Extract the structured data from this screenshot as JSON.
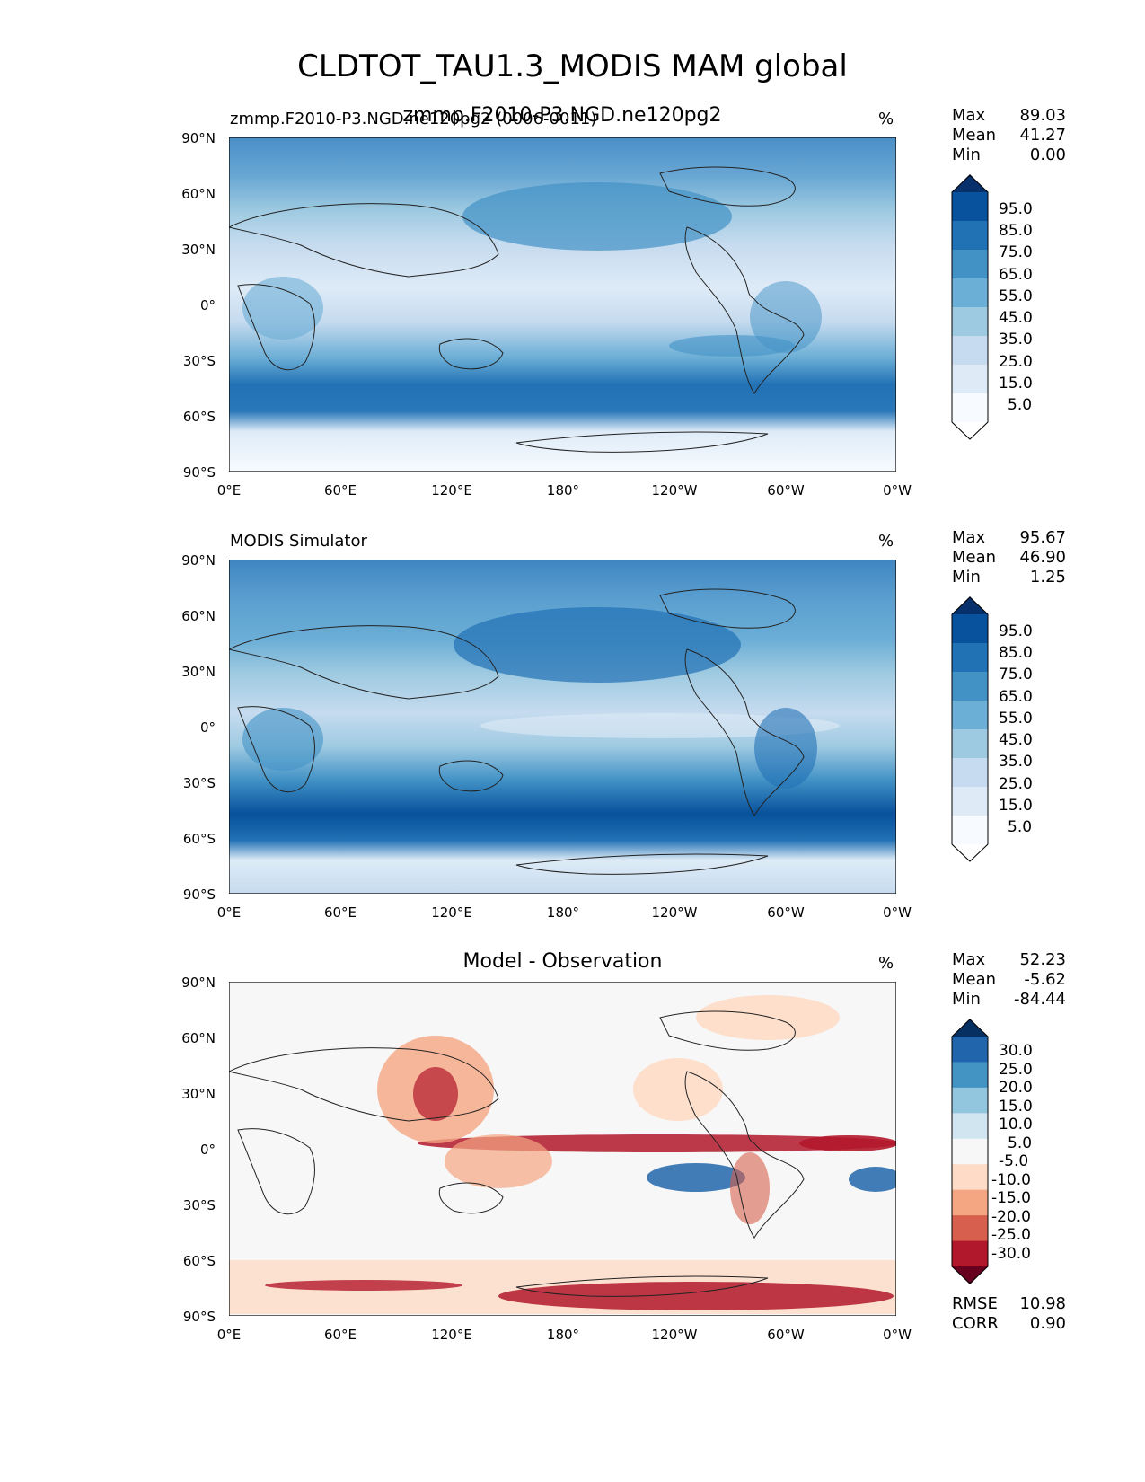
{
  "title": "CLDTOT_TAU1.3_MODIS MAM global",
  "lat_ticks": [
    "90°N",
    "60°N",
    "30°N",
    "0°",
    "30°S",
    "60°S",
    "90°S"
  ],
  "lon_ticks": [
    "0°E",
    "60°E",
    "120°E",
    "180°",
    "120°W",
    "60°W",
    "0°W"
  ],
  "panels": [
    {
      "id": "model",
      "left_title": "zmmp.F2010-P3.NGD.ne120pg2 (0006-0011)",
      "center_title": "zmmp.F2010-P3.NGD.ne120pg2",
      "units": "%",
      "stats": [
        {
          "label": "Max",
          "value": "89.03"
        },
        {
          "label": "Mean",
          "value": "41.27"
        },
        {
          "label": "Min",
          "value": "0.00"
        }
      ],
      "colorbar_labels": [
        "95.0",
        "85.0",
        "75.0",
        "65.0",
        "55.0",
        "45.0",
        "35.0",
        "25.0",
        "15.0",
        "5.0"
      ],
      "colors": [
        "#08306b",
        "#08519c",
        "#2171b5",
        "#4292c6",
        "#6baed6",
        "#9ecae1",
        "#c6dbef",
        "#deebf7",
        "#f7fbff",
        "#ffffff"
      ]
    },
    {
      "id": "obs",
      "left_title": "MODIS Simulator",
      "center_title": "",
      "units": "%",
      "stats": [
        {
          "label": "Max",
          "value": "95.67"
        },
        {
          "label": "Mean",
          "value": "46.90"
        },
        {
          "label": "Min",
          "value": "1.25"
        }
      ],
      "colorbar_labels": [
        "95.0",
        "85.0",
        "75.0",
        "65.0",
        "55.0",
        "45.0",
        "35.0",
        "25.0",
        "15.0",
        "5.0"
      ],
      "colors": [
        "#08306b",
        "#08519c",
        "#2171b5",
        "#4292c6",
        "#6baed6",
        "#9ecae1",
        "#c6dbef",
        "#deebf7",
        "#f7fbff",
        "#ffffff"
      ]
    },
    {
      "id": "diff",
      "left_title": "",
      "center_title": "Model - Observation",
      "units": "%",
      "stats": [
        {
          "label": "Max",
          "value": "52.23"
        },
        {
          "label": "Mean",
          "value": "-5.62"
        },
        {
          "label": "Min",
          "value": "-84.44"
        }
      ],
      "extra_stats": [
        {
          "label": "RMSE",
          "value": "10.98"
        },
        {
          "label": "CORR",
          "value": "0.90"
        }
      ],
      "colorbar_labels": [
        "30.0",
        "25.0",
        "20.0",
        "15.0",
        "10.0",
        "5.0",
        "-5.0",
        "-10.0",
        "-15.0",
        "-20.0",
        "-25.0",
        "-30.0"
      ],
      "colors": [
        "#053061",
        "#2166ac",
        "#4393c3",
        "#92c5de",
        "#d1e5f0",
        "#f7f7f7",
        "#fddbc7",
        "#f4a582",
        "#d6604d",
        "#b2182b",
        "#67001f"
      ]
    }
  ]
}
